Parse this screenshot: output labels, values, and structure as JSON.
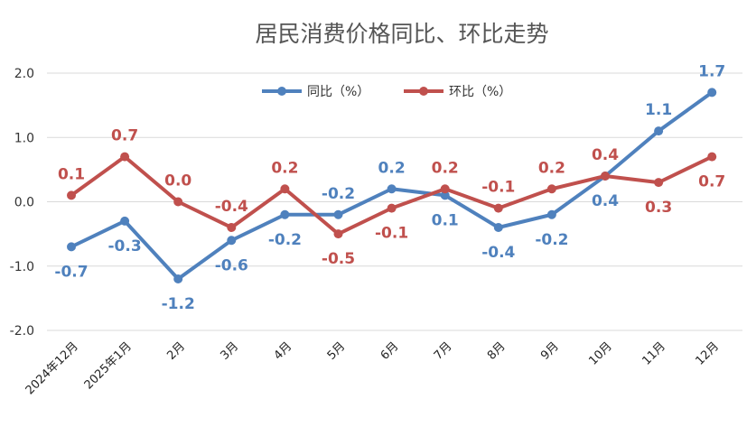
{
  "chart_data": {
    "type": "line",
    "title": "居民消费价格同比、环比走势",
    "categories": [
      "2024年12月",
      "2025年1月",
      "2月",
      "3月",
      "4月",
      "5月",
      "6月",
      "7月",
      "8月",
      "9月",
      "10月",
      "11月",
      "12月"
    ],
    "series": [
      {
        "name": "同比（%）",
        "color": "#4f81bd",
        "values": [
          -0.7,
          -0.3,
          -1.2,
          -0.6,
          -0.2,
          -0.2,
          0.2,
          0.1,
          -0.4,
          -0.2,
          0.4,
          1.1,
          1.7
        ],
        "labels": [
          "-0.7",
          "-0.3",
          "-1.2",
          "-0.6",
          "-0.2",
          "-0.2",
          "0.2",
          "0.1",
          "-0.4",
          "-0.2",
          "0.4",
          "1.1",
          "1.7"
        ]
      },
      {
        "name": "环比（%）",
        "color": "#c0504d",
        "values": [
          0.1,
          0.7,
          0.0,
          -0.4,
          0.2,
          -0.5,
          -0.1,
          0.2,
          -0.1,
          0.2,
          0.4,
          0.3,
          0.7
        ],
        "labels": [
          "0.1",
          "0.7",
          "0.0",
          "-0.4",
          "0.2",
          "-0.5",
          "-0.1",
          "0.2",
          "-0.1",
          "0.2",
          "0.4",
          "0.3",
          "0.7"
        ]
      }
    ],
    "yticks": [
      "2.0",
      "1.0",
      "0.0",
      "-1.0",
      "-2.0"
    ],
    "ylim": [
      -2.0,
      2.0
    ],
    "xlabel": "",
    "ylabel": "",
    "grid": true,
    "legend": "top-center"
  }
}
